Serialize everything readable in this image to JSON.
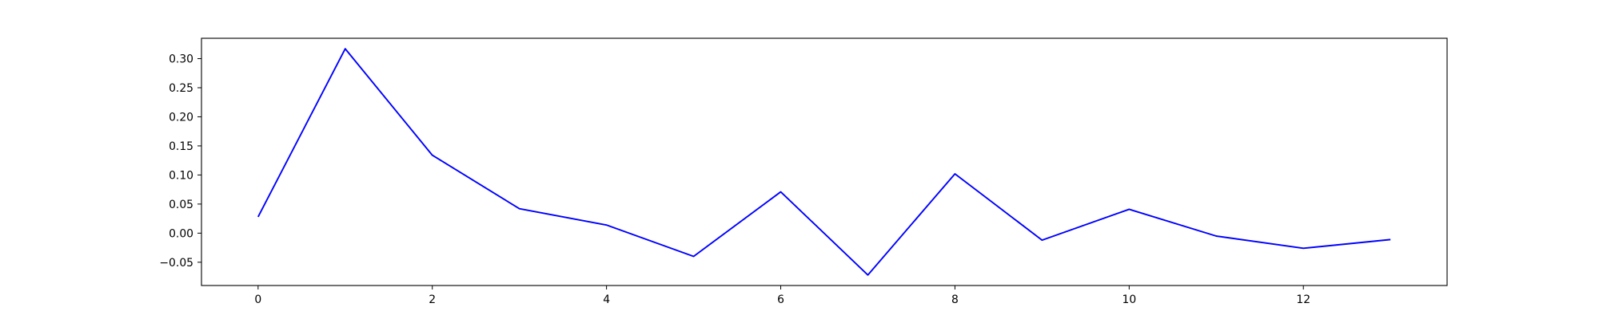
{
  "chart_data": {
    "type": "line",
    "title": "",
    "xlabel": "",
    "ylabel": "",
    "xlim": [
      -0.65,
      13.65
    ],
    "ylim": [
      -0.09,
      0.335
    ],
    "x_ticks": [
      0,
      2,
      4,
      6,
      8,
      10,
      12
    ],
    "y_ticks": [
      -0.05,
      0.0,
      0.05,
      0.1,
      0.15,
      0.2,
      0.25,
      0.3
    ],
    "x_tick_labels": [
      "0",
      "2",
      "4",
      "6",
      "8",
      "10",
      "12"
    ],
    "y_tick_labels": [
      "−0.05",
      "0.00",
      "0.05",
      "0.10",
      "0.15",
      "0.20",
      "0.25",
      "0.30"
    ],
    "grid": false,
    "series": [
      {
        "color": "#0000ff",
        "x": [
          0,
          1,
          2,
          3,
          4,
          5,
          6,
          7,
          8,
          9,
          10,
          11,
          12,
          13
        ],
        "values": [
          0.028,
          0.317,
          0.134,
          0.042,
          0.014,
          -0.04,
          0.071,
          -0.072,
          0.102,
          -0.012,
          0.041,
          -0.005,
          -0.026,
          -0.011
        ]
      }
    ]
  }
}
